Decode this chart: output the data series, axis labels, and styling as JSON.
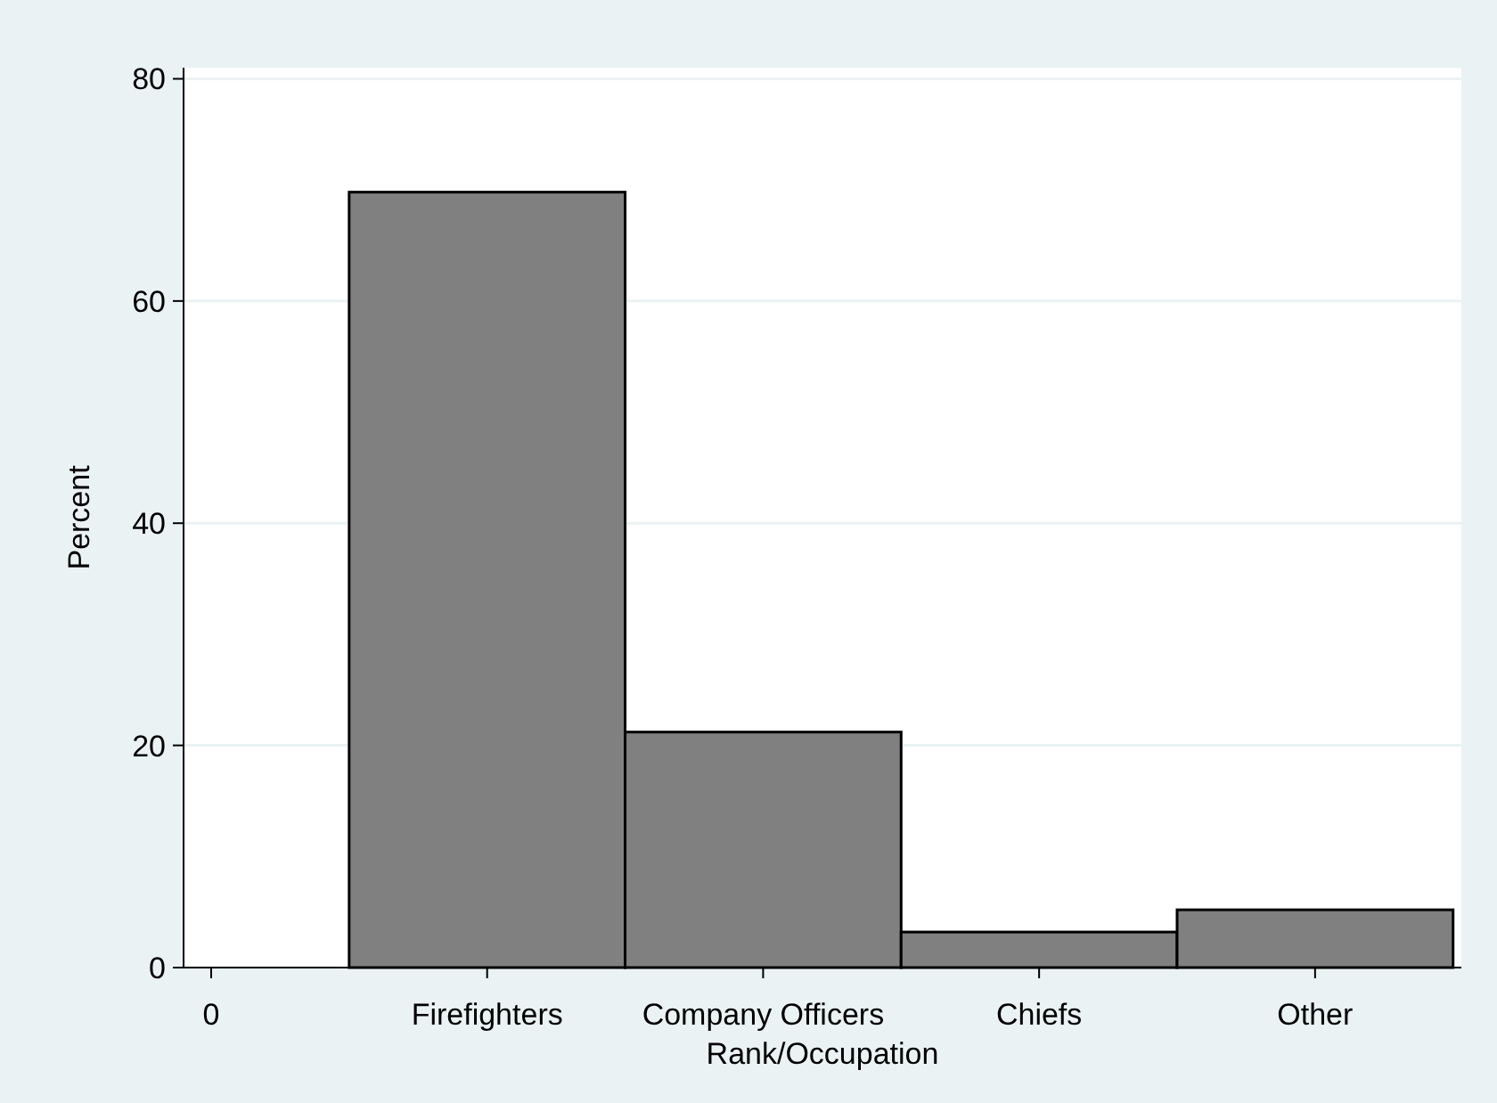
{
  "chart_data": {
    "type": "bar",
    "xlabel": "Rank/Occupation",
    "ylabel": "Percent",
    "categories": [
      "0",
      "Firefighters",
      "Company Officers",
      "Chiefs",
      "Other"
    ],
    "values": [
      null,
      69.8,
      21.2,
      3.2,
      5.2
    ],
    "color": "#808080",
    "ylim": [
      0,
      81
    ],
    "yticks": [
      0,
      20,
      40,
      60,
      80
    ],
    "grid": "y"
  }
}
